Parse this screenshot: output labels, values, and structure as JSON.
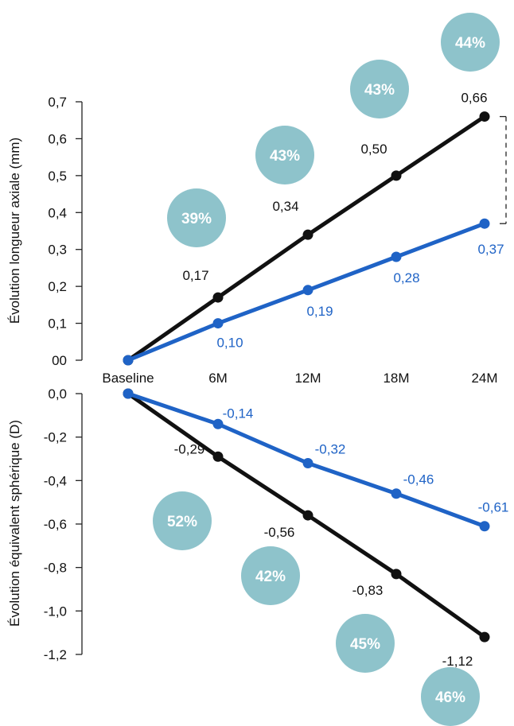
{
  "colors": {
    "control": "#111111",
    "treatment": "#1f63c6",
    "bubble": "#8ec3cb"
  },
  "chart_data": [
    {
      "type": "line",
      "categories": [
        "Baseline",
        "6M",
        "12M",
        "18M",
        "24M"
      ],
      "ylabel": "Évolution longueur axiale (mm)",
      "ylim": [
        0,
        0.7
      ],
      "yticks": [
        0,
        0.1,
        0.2,
        0.3,
        0.4,
        0.5,
        0.6,
        0.7
      ],
      "ytick_labels": [
        "00",
        "0,1",
        "0,2",
        "0,3",
        "0,4",
        "0,5",
        "0,6",
        "0,7"
      ],
      "grid": false,
      "series": [
        {
          "values": [
            0,
            0.17,
            0.34,
            0.5,
            0.66
          ],
          "labels": [
            "",
            "0,17",
            "0,34",
            "0,50",
            "0,66"
          ]
        },
        {
          "values": [
            0,
            0.1,
            0.19,
            0.28,
            0.37
          ],
          "labels": [
            "",
            "0,10",
            "0,19",
            "0,28",
            "0,37"
          ]
        }
      ],
      "reduction_badges": [
        "39%",
        "43%",
        "43%",
        "44%"
      ]
    },
    {
      "type": "line",
      "categories": [
        "Baseline",
        "6M",
        "12M",
        "18M",
        "24M"
      ],
      "ylabel": "Évolution équivalent sphérique (D)",
      "ylim": [
        -1.2,
        0
      ],
      "yticks": [
        0,
        -0.2,
        -0.4,
        -0.6,
        -0.8,
        -1.0,
        -1.2
      ],
      "ytick_labels": [
        "0,0",
        "-0,2",
        "-0,4",
        "-0,6",
        "-0,8",
        "-1,0",
        "-1,2"
      ],
      "grid": false,
      "series": [
        {
          "values": [
            0,
            -0.29,
            -0.56,
            -0.83,
            -1.12
          ],
          "labels": [
            "",
            "-0,29",
            "-0,56",
            "-0,83",
            "-1,12"
          ]
        },
        {
          "values": [
            0,
            -0.14,
            -0.32,
            -0.46,
            -0.61
          ],
          "labels": [
            "",
            "-0,14",
            "-0,32",
            "-0,46",
            "-0,61"
          ]
        }
      ],
      "reduction_badges": [
        "52%",
        "42%",
        "45%",
        "46%"
      ]
    }
  ]
}
